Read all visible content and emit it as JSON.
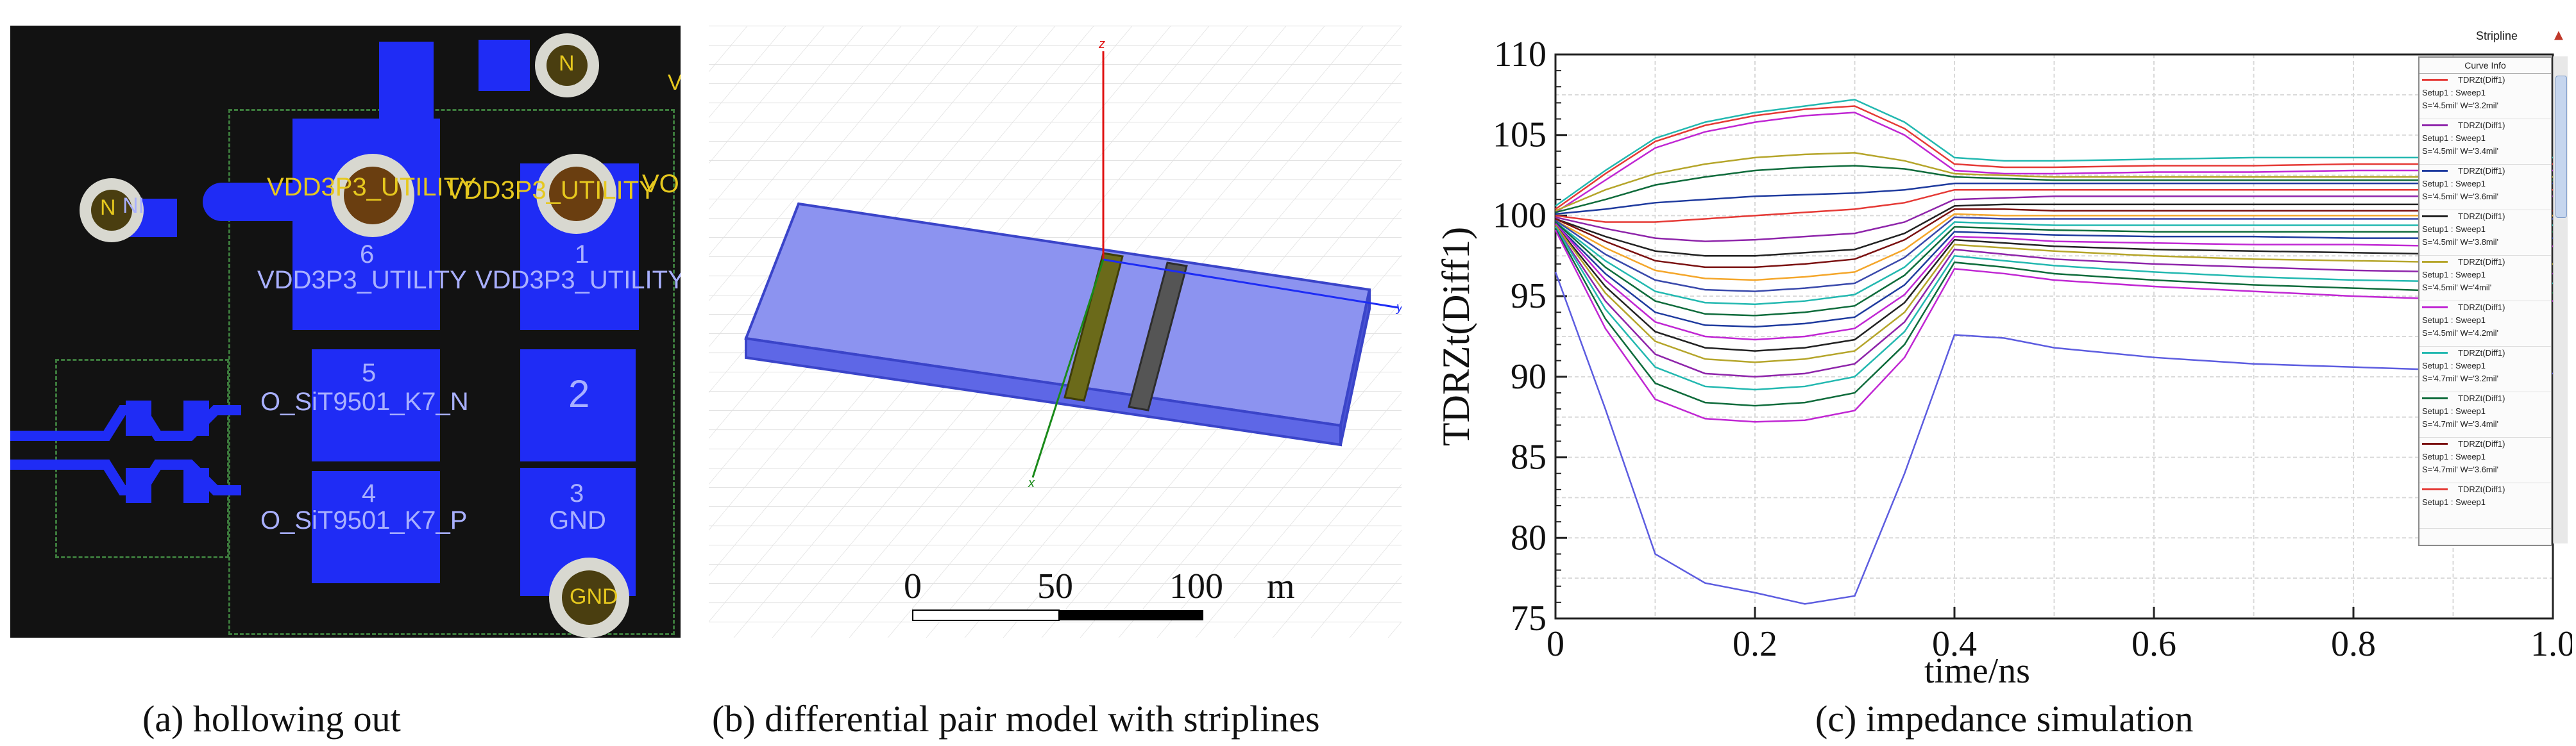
{
  "figure": {
    "captions": {
      "a": "(a) hollowing out",
      "b": "(b) differential pair model with striplines",
      "c": "(c) impedance simulation"
    }
  },
  "pcb": {
    "net_top": "VDD3P3_UTILITY",
    "net_top2": "VDD3P3_UTILITY",
    "pad_labels": {
      "p6": "6",
      "p1": "1",
      "p5": "5",
      "p2": "2",
      "p4": "4",
      "p3": "3",
      "n6": "VDD3P3_UTILITY",
      "n1": "VDD3P3_UTILITY",
      "n5": "O_SiT9501_K7_N",
      "n4": "O_SiT9501_K7_P",
      "n3": "GND"
    },
    "via_labels": {
      "left": "N",
      "top": "N",
      "bottom": "GND"
    },
    "edge_text": "V",
    "edge_text2": "VO",
    "left_text": "NI",
    "colors": {
      "pad": "#1f2cf5",
      "background": "#121212",
      "silk": "#e6c81e"
    }
  },
  "model": {
    "axes": {
      "z": "z",
      "y": "y",
      "x": "x"
    },
    "scale": {
      "t0": "0",
      "t1": "50",
      "t2": "100",
      "unit": "m"
    },
    "colors": {
      "substrate": "#6a73e8",
      "trace_left": "#6b6a1a",
      "trace_right": "#555555"
    }
  },
  "chart_data": {
    "type": "line",
    "title": "Stripline",
    "xlabel": "time/ns",
    "ylabel": "TDRZt(Diff1)",
    "xlim": [
      0,
      1.0
    ],
    "ylim": [
      75,
      110
    ],
    "xticks": [
      "0",
      "0.2",
      "0.4",
      "0.6",
      "0.8",
      "1.0"
    ],
    "yticks": [
      "75",
      "80",
      "85",
      "90",
      "95",
      "100",
      "105",
      "110"
    ],
    "grid": true,
    "legend_position": "top-right",
    "legend": {
      "header": "Curve Info",
      "items": [
        {
          "name": "TDRZt(Diff1)",
          "setup": "Setup1 : Sweep1",
          "params": "S='4.5mil' W='3.2mil'",
          "color": "#e53935"
        },
        {
          "name": "TDRZt(Diff1)",
          "setup": "Setup1 : Sweep1",
          "params": "S='4.5mil' W='3.4mil'",
          "color": "#8e24aa"
        },
        {
          "name": "TDRZt(Diff1)",
          "setup": "Setup1 : Sweep1",
          "params": "S='4.5mil' W='3.6mil'",
          "color": "#1e3a9e"
        },
        {
          "name": "TDRZt(Diff1)",
          "setup": "Setup1 : Sweep1",
          "params": "S='4.5mil' W='3.8mil'",
          "color": "#222222"
        },
        {
          "name": "TDRZt(Diff1)",
          "setup": "Setup1 : Sweep1",
          "params": "S='4.5mil' W='4mil'",
          "color": "#b5a52a"
        },
        {
          "name": "TDRZt(Diff1)",
          "setup": "Setup1 : Sweep1",
          "params": "S='4.5mil' W='4.2mil'",
          "color": "#c026d3"
        },
        {
          "name": "TDRZt(Diff1)",
          "setup": "Setup1 : Sweep1",
          "params": "S='4.7mil' W='3.2mil'",
          "color": "#22b8b0"
        },
        {
          "name": "TDRZt(Diff1)",
          "setup": "Setup1 : Sweep1",
          "params": "S='4.7mil' W='3.4mil'",
          "color": "#0e6b3b"
        },
        {
          "name": "TDRZt(Diff1)",
          "setup": "Setup1 : Sweep1",
          "params": "S='4.7mil' W='3.6mil'",
          "color": "#7a1010"
        },
        {
          "name": "TDRZt(Diff1)",
          "setup": "Setup1 : Sweep1",
          "params": "",
          "color": "#e53935"
        }
      ]
    },
    "x": [
      0,
      0.05,
      0.1,
      0.15,
      0.2,
      0.25,
      0.3,
      0.35,
      0.4,
      0.45,
      0.5,
      0.6,
      0.7,
      0.8,
      0.9,
      1.0
    ],
    "series": [
      {
        "color": "#e53935",
        "values": [
          100.4,
          102.6,
          104.6,
          105.6,
          106.2,
          106.6,
          106.8,
          105.4,
          103.2,
          103.0,
          103.0,
          103.1,
          103.1,
          103.2,
          103.2,
          103.2
        ]
      },
      {
        "color": "#22b8b0",
        "values": [
          100.6,
          102.8,
          104.8,
          105.8,
          106.4,
          106.8,
          107.2,
          105.8,
          103.6,
          103.4,
          103.4,
          103.5,
          103.6,
          103.6,
          103.6,
          103.6
        ]
      },
      {
        "color": "#c026d3",
        "values": [
          100.2,
          102.2,
          104.2,
          105.2,
          105.8,
          106.2,
          106.4,
          105.0,
          102.8,
          102.6,
          102.6,
          102.7,
          102.7,
          102.8,
          102.8,
          102.8
        ]
      },
      {
        "color": "#b5a52a",
        "values": [
          100.3,
          101.6,
          102.6,
          103.2,
          103.6,
          103.8,
          103.9,
          103.4,
          102.6,
          102.5,
          102.4,
          102.4,
          102.4,
          102.4,
          102.4,
          102.4
        ]
      },
      {
        "color": "#0e6b3b",
        "values": [
          100.2,
          101.0,
          101.9,
          102.4,
          102.8,
          103.0,
          103.1,
          102.9,
          102.4,
          102.3,
          102.2,
          102.2,
          102.2,
          102.2,
          102.2,
          102.2
        ]
      },
      {
        "color": "#1e3a9e",
        "values": [
          100.1,
          100.4,
          100.8,
          101.0,
          101.2,
          101.3,
          101.4,
          101.6,
          102.0,
          102.0,
          102.0,
          102.0,
          102.0,
          102.0,
          102.0,
          102.0
        ]
      },
      {
        "color": "#e53935",
        "values": [
          100.0,
          99.6,
          99.6,
          99.8,
          100.0,
          100.2,
          100.4,
          100.8,
          101.6,
          101.6,
          101.6,
          101.6,
          101.6,
          101.6,
          101.6,
          101.6
        ]
      },
      {
        "color": "#8e24aa",
        "values": [
          99.9,
          99.2,
          98.6,
          98.4,
          98.5,
          98.7,
          98.9,
          99.6,
          101.0,
          101.1,
          101.2,
          101.2,
          101.2,
          101.2,
          101.2,
          101.2
        ]
      },
      {
        "color": "#222222",
        "values": [
          99.8,
          98.7,
          97.8,
          97.5,
          97.5,
          97.7,
          97.9,
          98.9,
          100.6,
          100.7,
          100.7,
          100.7,
          100.7,
          100.7,
          100.7,
          100.7
        ]
      },
      {
        "color": "#7a1010",
        "values": [
          99.8,
          98.4,
          97.2,
          96.8,
          96.8,
          97.0,
          97.3,
          98.5,
          100.4,
          100.4,
          100.3,
          100.3,
          100.3,
          100.3,
          100.3,
          100.3
        ]
      },
      {
        "color": "#f4a62a",
        "values": [
          99.7,
          98.0,
          96.6,
          96.1,
          96.0,
          96.2,
          96.5,
          97.9,
          100.1,
          100.0,
          100.0,
          100.0,
          100.0,
          100.0,
          100.0,
          100.0
        ]
      },
      {
        "color": "#3949ab",
        "values": [
          99.7,
          97.6,
          96.0,
          95.4,
          95.3,
          95.5,
          95.8,
          97.4,
          99.9,
          99.8,
          99.8,
          99.8,
          99.8,
          99.8,
          99.8,
          99.8
        ]
      },
      {
        "color": "#22b8b0",
        "values": [
          99.6,
          97.2,
          95.3,
          94.6,
          94.5,
          94.7,
          95.1,
          96.8,
          99.6,
          99.5,
          99.4,
          99.4,
          99.4,
          99.4,
          99.4,
          99.4
        ]
      },
      {
        "color": "#0e6b3b",
        "values": [
          99.6,
          96.8,
          94.7,
          93.9,
          93.8,
          94.0,
          94.4,
          96.3,
          99.3,
          99.2,
          99.1,
          99.0,
          99.0,
          99.0,
          99.0,
          99.0
        ]
      },
      {
        "color": "#1e3a9e",
        "values": [
          99.5,
          96.4,
          94.0,
          93.2,
          93.1,
          93.3,
          93.7,
          95.7,
          99.0,
          98.9,
          98.8,
          98.7,
          98.7,
          98.6,
          98.6,
          98.6
        ]
      },
      {
        "color": "#c026d3",
        "values": [
          99.5,
          96.0,
          93.4,
          92.5,
          92.3,
          92.5,
          93.0,
          95.1,
          98.7,
          98.6,
          98.4,
          98.3,
          98.2,
          98.2,
          98.1,
          98.1
        ]
      },
      {
        "color": "#222222",
        "values": [
          99.4,
          95.6,
          92.8,
          91.8,
          91.6,
          91.8,
          92.3,
          94.6,
          98.5,
          98.3,
          98.1,
          97.9,
          97.8,
          97.7,
          97.6,
          97.6
        ]
      },
      {
        "color": "#b5a52a",
        "values": [
          99.4,
          95.2,
          92.2,
          91.1,
          90.9,
          91.1,
          91.6,
          94.0,
          98.2,
          98.0,
          97.8,
          97.5,
          97.3,
          97.2,
          97.1,
          97.0
        ]
      },
      {
        "color": "#8e24aa",
        "values": [
          99.3,
          94.7,
          91.4,
          90.2,
          90.0,
          90.2,
          90.8,
          93.4,
          97.9,
          97.6,
          97.3,
          97.0,
          96.8,
          96.6,
          96.5,
          96.4
        ]
      },
      {
        "color": "#22b8b0",
        "values": [
          99.3,
          94.2,
          90.6,
          89.4,
          89.2,
          89.4,
          90.0,
          92.8,
          97.5,
          97.2,
          96.9,
          96.5,
          96.2,
          96.0,
          95.9,
          95.8
        ]
      },
      {
        "color": "#0e6b3b",
        "values": [
          99.2,
          93.6,
          89.6,
          88.4,
          88.2,
          88.4,
          89.0,
          92.0,
          97.1,
          96.8,
          96.4,
          96.0,
          95.7,
          95.5,
          95.3,
          95.2
        ]
      },
      {
        "color": "#c026d3",
        "values": [
          99.1,
          93.0,
          88.6,
          87.4,
          87.2,
          87.3,
          87.9,
          91.2,
          96.7,
          96.4,
          96.0,
          95.6,
          95.3,
          95.0,
          94.8,
          94.7
        ]
      },
      {
        "color": "#5c5ce0",
        "values": [
          96.5,
          88.0,
          79.0,
          77.2,
          76.6,
          75.9,
          76.4,
          84.0,
          92.6,
          92.4,
          91.8,
          91.2,
          90.8,
          90.6,
          90.4,
          90.2
        ]
      }
    ]
  }
}
